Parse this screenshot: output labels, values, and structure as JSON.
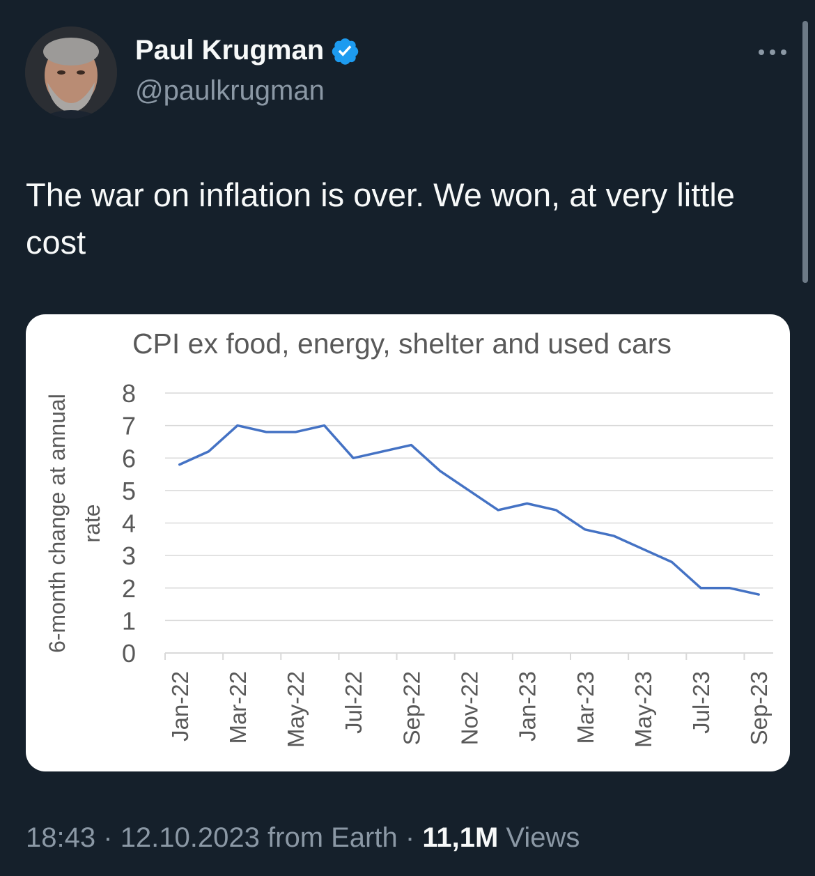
{
  "tweet": {
    "author_name": "Paul Krugman",
    "handle": "@paulkrugman",
    "verified": true,
    "text": "The war on inflation is over. We won, at very little cost",
    "time": "18:43",
    "date": "12.10.2023",
    "source": "from Earth",
    "views_count": "11,1M",
    "views_label": "Views",
    "separator": "·"
  },
  "icons": {
    "verified": "verified-badge-icon",
    "more": "more-dots-icon"
  },
  "colors": {
    "background": "#15202b",
    "verified_blue": "#1d9bf0",
    "muted_text": "#8b98a5",
    "chart_line": "#4472c4"
  },
  "chart_data": {
    "type": "line",
    "title": "CPI ex food, energy, shelter and used cars",
    "ylabel": "6-month change at annual rate",
    "xlabel": "",
    "ylim": [
      0,
      8
    ],
    "yticks": [
      "0",
      "1",
      "2",
      "3",
      "4",
      "5",
      "6",
      "7",
      "8"
    ],
    "grid": true,
    "x": [
      "Jan-22",
      "Feb-22",
      "Mar-22",
      "Apr-22",
      "May-22",
      "Jun-22",
      "Jul-22",
      "Aug-22",
      "Sep-22",
      "Oct-22",
      "Nov-22",
      "Dec-22",
      "Jan-23",
      "Feb-23",
      "Mar-23",
      "Apr-23",
      "May-23",
      "Jun-23",
      "Jul-23",
      "Aug-23",
      "Sep-23"
    ],
    "xtick_labels": [
      "Jan-22",
      "Mar-22",
      "May-22",
      "Jul-22",
      "Sep-22",
      "Nov-22",
      "Jan-23",
      "Mar-23",
      "May-23",
      "Jul-23",
      "Sep-23"
    ],
    "series": [
      {
        "values": [
          5.8,
          6.2,
          7.0,
          6.8,
          6.8,
          7.0,
          6.0,
          6.2,
          6.4,
          5.6,
          5.0,
          4.4,
          4.6,
          4.4,
          3.8,
          3.6,
          3.2,
          2.8,
          2.0,
          2.0,
          1.8
        ]
      }
    ]
  }
}
